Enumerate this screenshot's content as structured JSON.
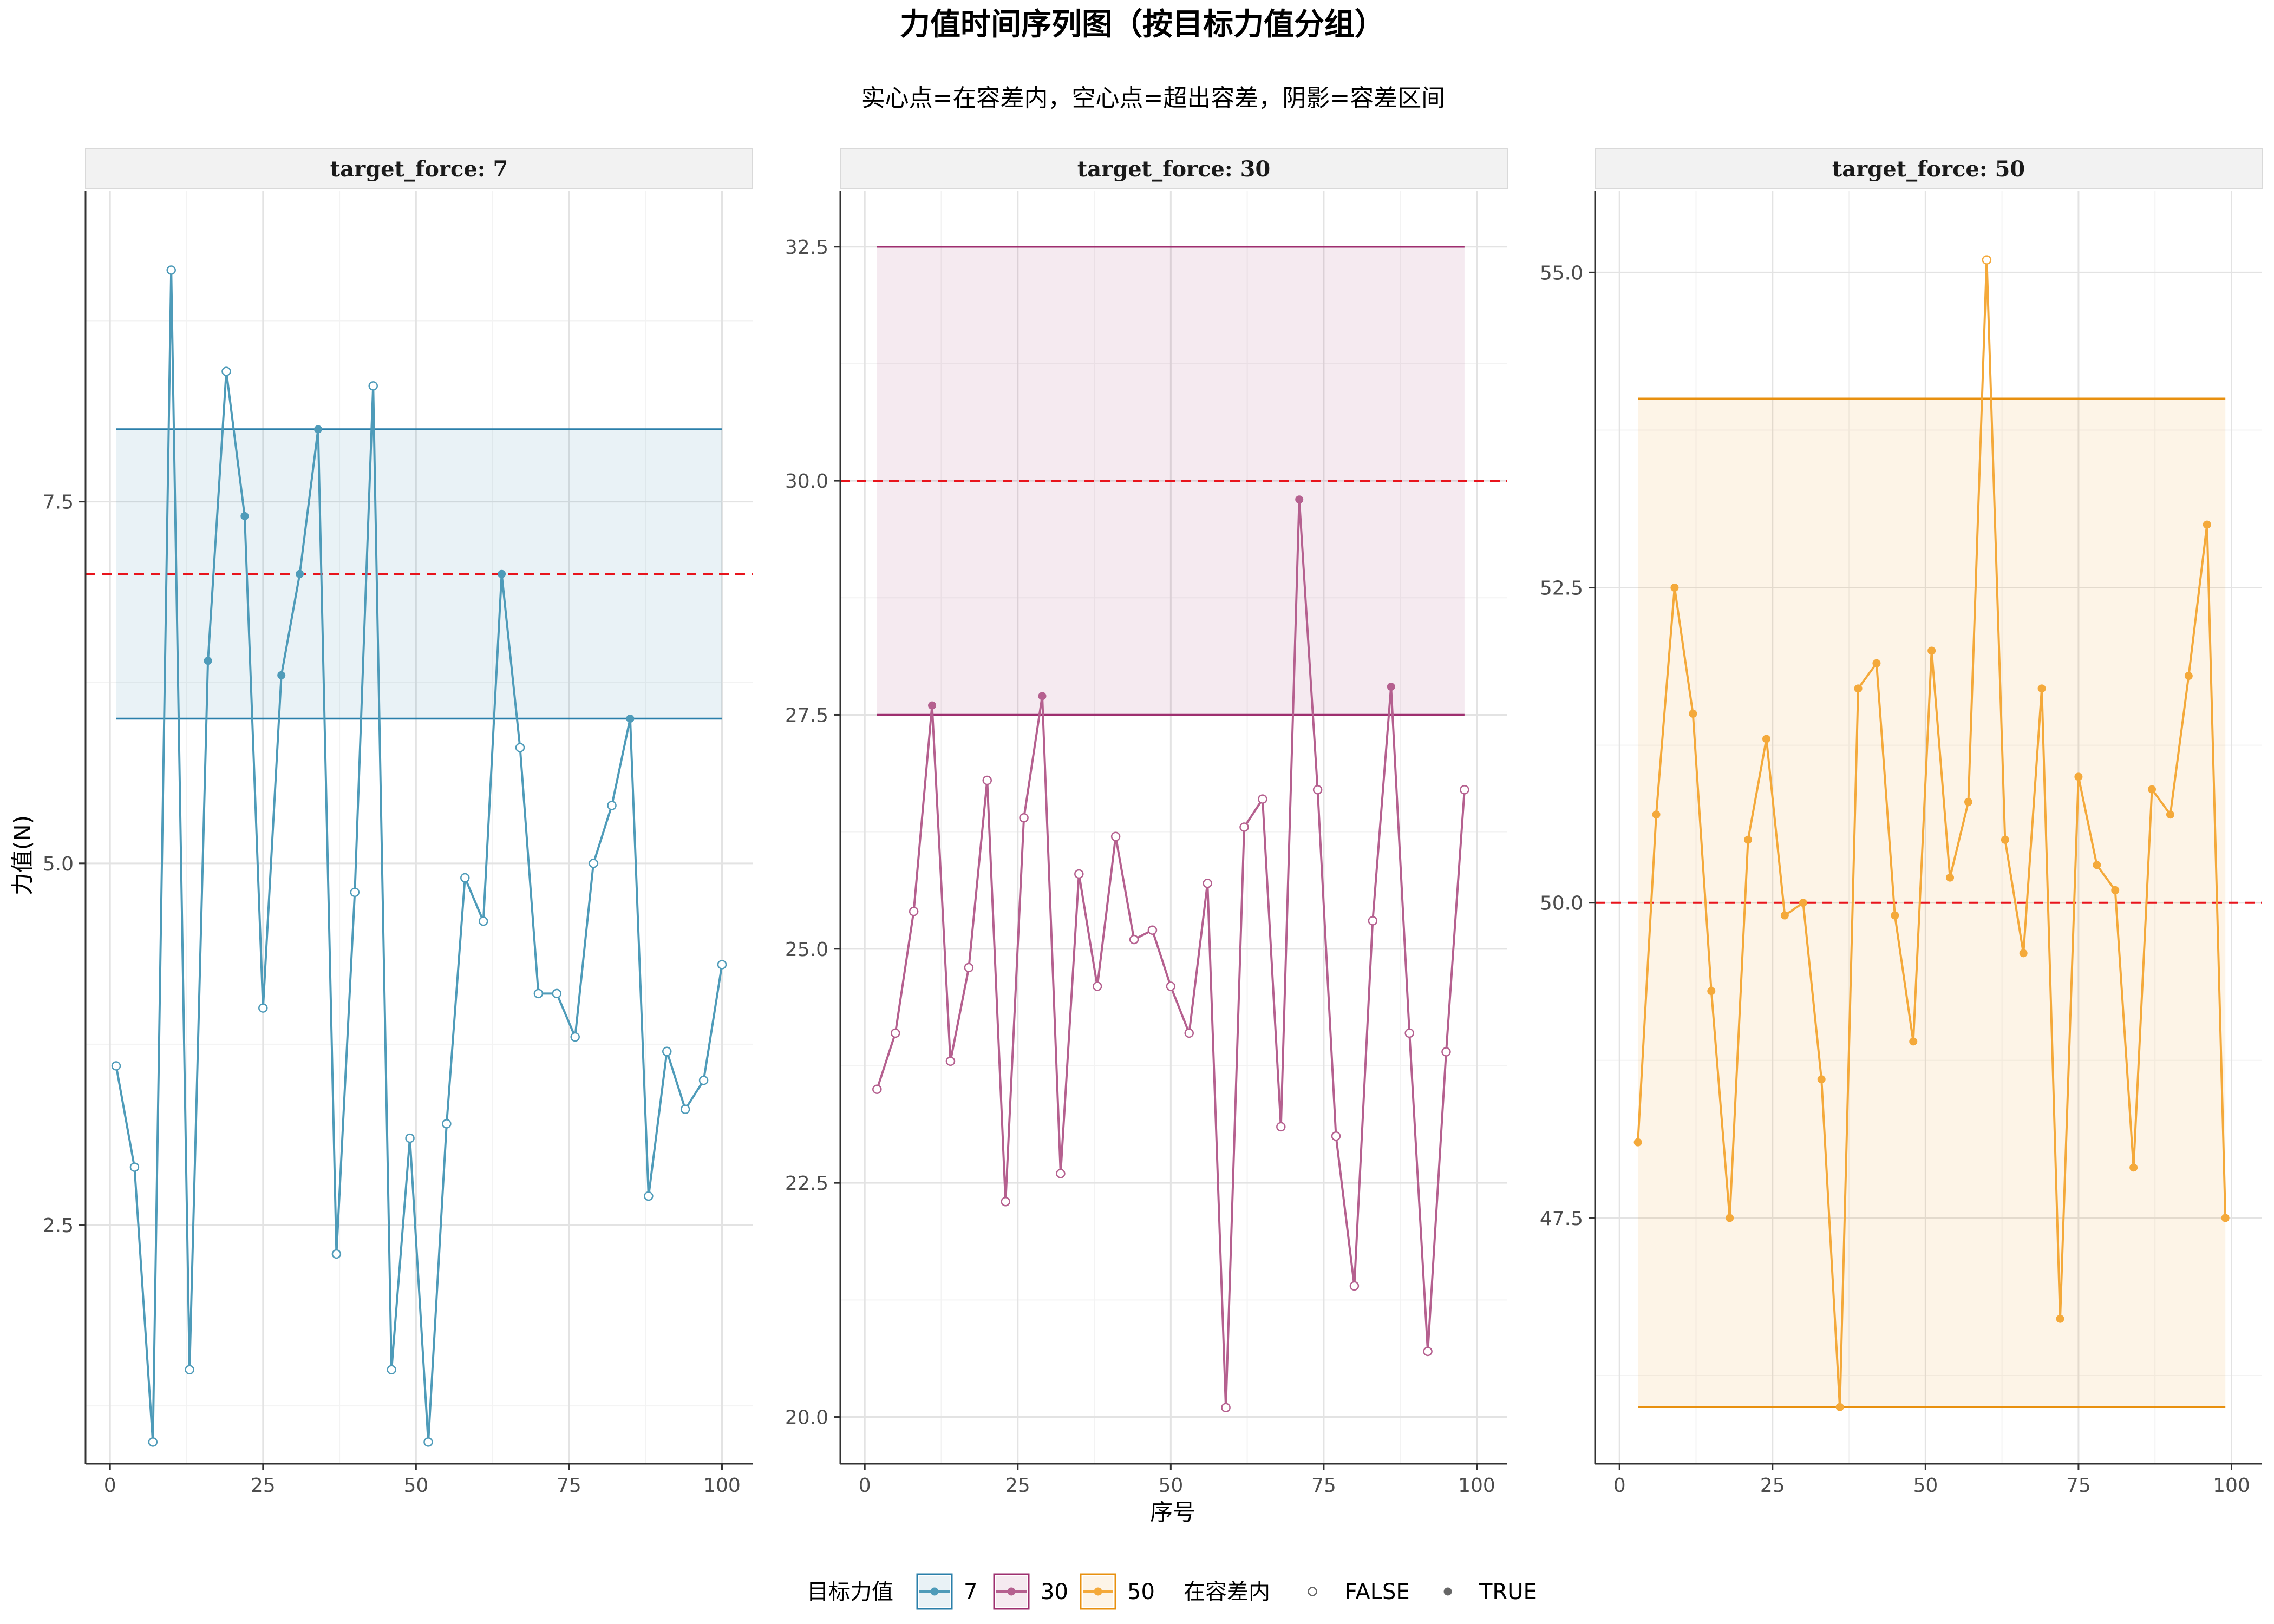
{
  "title": "力值时间序列图（按目标力值分组）",
  "subtitle": "实心点=在容差内，空心点=超出容差，阴影=容差区间",
  "chart_data": {
    "type": "line",
    "title": "力值时间序列图（按目标力值分组）",
    "subtitle": "实心点=在容差内，空心点=超出容差，阴影=容差区间",
    "xlabel": "序号",
    "ylabel": "力值(N)",
    "facet_prefix": "target_force: ",
    "legend": {
      "position": "bottom",
      "color_title": "目标力值",
      "shape_title": "在容差内",
      "shape_entries": [
        "FALSE",
        "TRUE"
      ]
    },
    "panels": [
      {
        "target": 7,
        "strip_label": "target_force: 7",
        "color": "#4E9BB9",
        "band_color": "#2A7FAA",
        "band": [
          6,
          8
        ],
        "xlim": [
          -4,
          105
        ],
        "ylim": [
          0.85,
          9.65
        ],
        "xticks": [
          0,
          25,
          50,
          75,
          100
        ],
        "yticks": [
          2.5,
          5.0,
          7.5
        ],
        "x": [
          1,
          4,
          7,
          10,
          13,
          16,
          19,
          22,
          25,
          28,
          31,
          34,
          37,
          40,
          43,
          46,
          49,
          52,
          55,
          58,
          61,
          64,
          67,
          70,
          73,
          76,
          79,
          82,
          85,
          88,
          91,
          94,
          97,
          100
        ],
        "y": [
          3.6,
          2.9,
          1.0,
          9.1,
          1.5,
          6.4,
          8.4,
          7.4,
          4.0,
          6.3,
          7.0,
          8.0,
          2.3,
          4.8,
          8.3,
          1.5,
          3.1,
          1.0,
          3.2,
          4.9,
          4.6,
          7.0,
          5.8,
          4.1,
          4.1,
          3.8,
          5.0,
          5.4,
          6.0,
          2.7,
          3.7,
          3.3,
          3.5,
          4.3
        ]
      },
      {
        "target": 30,
        "strip_label": "target_force: 30",
        "color": "#B5608F",
        "band_color": "#9E2F6F",
        "band": [
          27.5,
          32.5
        ],
        "xlim": [
          -4,
          105
        ],
        "ylim": [
          19.5,
          33.1
        ],
        "xticks": [
          0,
          25,
          50,
          75,
          100
        ],
        "yticks": [
          20.0,
          22.5,
          25.0,
          27.5,
          30.0,
          32.5
        ],
        "x": [
          2,
          5,
          8,
          11,
          14,
          17,
          20,
          23,
          26,
          29,
          32,
          35,
          38,
          41,
          44,
          47,
          50,
          53,
          56,
          59,
          62,
          65,
          68,
          71,
          74,
          77,
          80,
          83,
          86,
          89,
          92,
          95,
          98
        ],
        "y": [
          23.5,
          24.1,
          25.4,
          27.6,
          23.8,
          24.8,
          26.8,
          22.3,
          26.4,
          27.7,
          22.6,
          25.8,
          24.6,
          26.2,
          25.1,
          25.2,
          24.6,
          24.1,
          25.7,
          20.1,
          26.3,
          26.6,
          23.1,
          29.8,
          26.7,
          23.0,
          21.4,
          25.3,
          27.8,
          24.1,
          20.7,
          23.9,
          26.7
        ]
      },
      {
        "target": 50,
        "strip_label": "target_force: 50",
        "color": "#F4A93A",
        "band_color": "#E8900F",
        "band": [
          46,
          54
        ],
        "xlim": [
          -4,
          105
        ],
        "ylim": [
          45.55,
          55.65
        ],
        "xticks": [
          0,
          25,
          50,
          75,
          100
        ],
        "yticks": [
          47.5,
          50.0,
          52.5,
          55.0
        ],
        "x": [
          3,
          6,
          9,
          12,
          15,
          18,
          21,
          24,
          27,
          30,
          33,
          36,
          39,
          42,
          45,
          48,
          51,
          54,
          57,
          60,
          63,
          66,
          69,
          72,
          75,
          78,
          81,
          84,
          87,
          90,
          93,
          96,
          99
        ],
        "y": [
          48.1,
          50.7,
          52.5,
          51.5,
          49.3,
          47.5,
          50.5,
          51.3,
          49.9,
          50.0,
          48.6,
          46.0,
          51.7,
          51.9,
          49.9,
          48.9,
          52.0,
          50.2,
          50.8,
          55.1,
          50.5,
          49.6,
          51.7,
          46.7,
          51.0,
          50.3,
          50.1,
          47.9,
          50.9,
          50.7,
          51.8,
          53.0,
          47.5
        ]
      }
    ]
  }
}
